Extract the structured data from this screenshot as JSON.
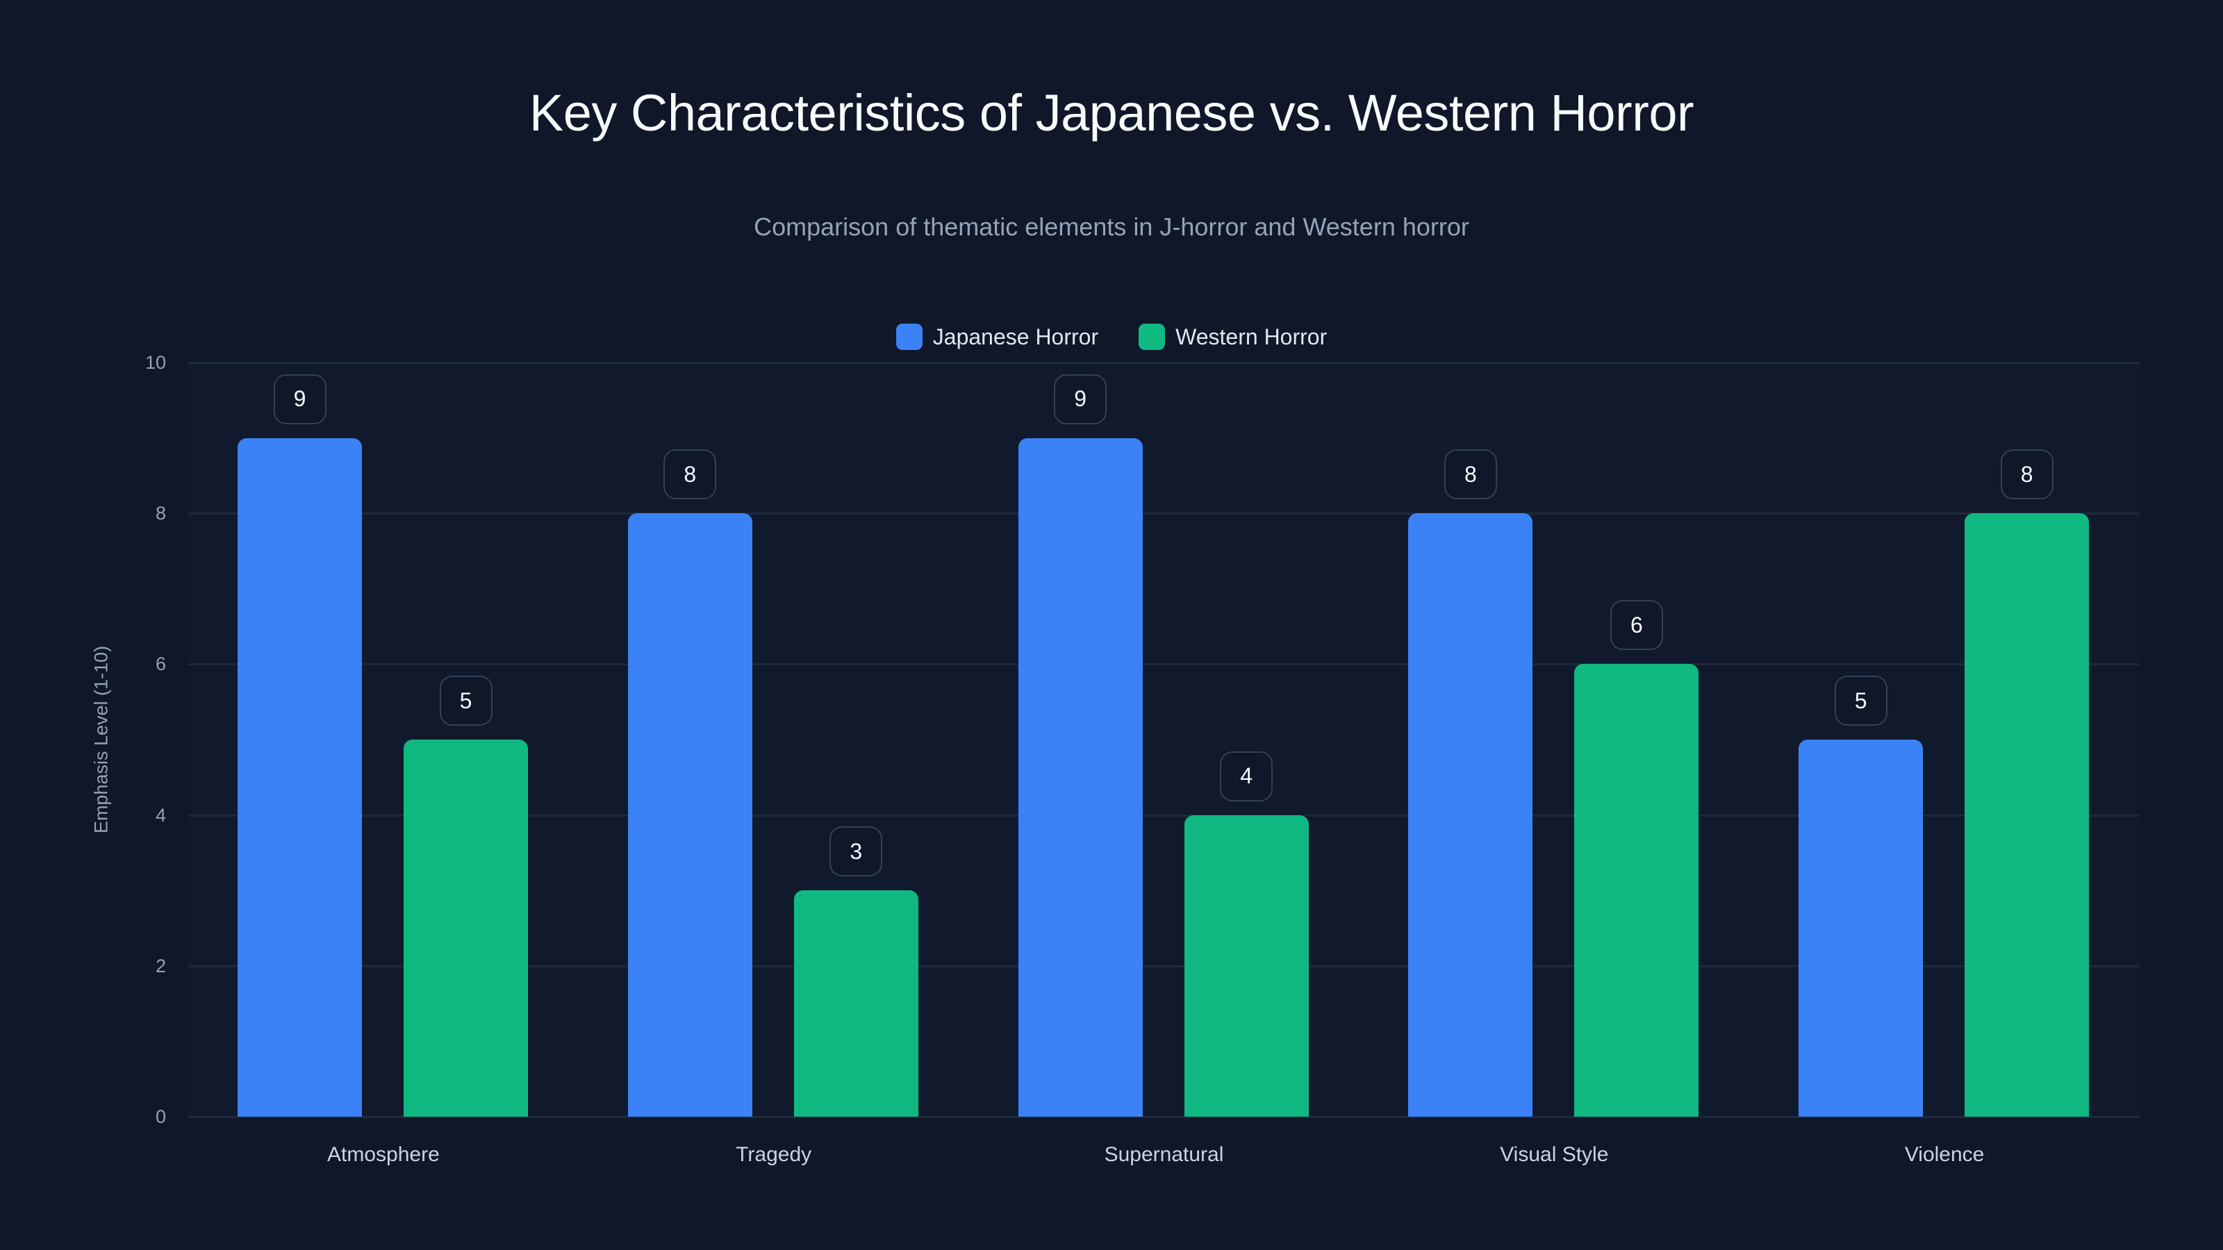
{
  "title": "Key Characteristics of Japanese vs. Western Horror",
  "subtitle": "Comparison of thematic elements in J-horror and Western horror",
  "colors": {
    "background": "#0f1729",
    "japanese": "#3b82f6",
    "western": "#10b981",
    "grid": "#1e293b",
    "label_border": "#334155"
  },
  "legend": [
    {
      "label": "Japanese Horror",
      "color": "#3b82f6"
    },
    {
      "label": "Western Horror",
      "color": "#10b981"
    }
  ],
  "yaxis": {
    "title": "Emphasis Level (1-10)",
    "ticks": [
      "0",
      "2",
      "4",
      "6",
      "8",
      "10"
    ]
  },
  "chart_data": {
    "type": "bar",
    "title": "Key Characteristics of Japanese vs. Western Horror",
    "subtitle": "Comparison of thematic elements in J-horror and Western horror",
    "categories": [
      "Atmosphere",
      "Tragedy",
      "Supernatural",
      "Visual Style",
      "Violence"
    ],
    "series": [
      {
        "name": "Japanese Horror",
        "color": "#3b82f6",
        "values": [
          9,
          8,
          9,
          8,
          5
        ]
      },
      {
        "name": "Western Horror",
        "color": "#10b981",
        "values": [
          5,
          3,
          4,
          6,
          8
        ]
      }
    ],
    "xlabel": "",
    "ylabel": "Emphasis Level (1-10)",
    "ylim": [
      0,
      10
    ],
    "yticks": [
      0,
      2,
      4,
      6,
      8,
      10
    ],
    "grid": true,
    "legend_position": "top-center",
    "data_labels": true
  }
}
